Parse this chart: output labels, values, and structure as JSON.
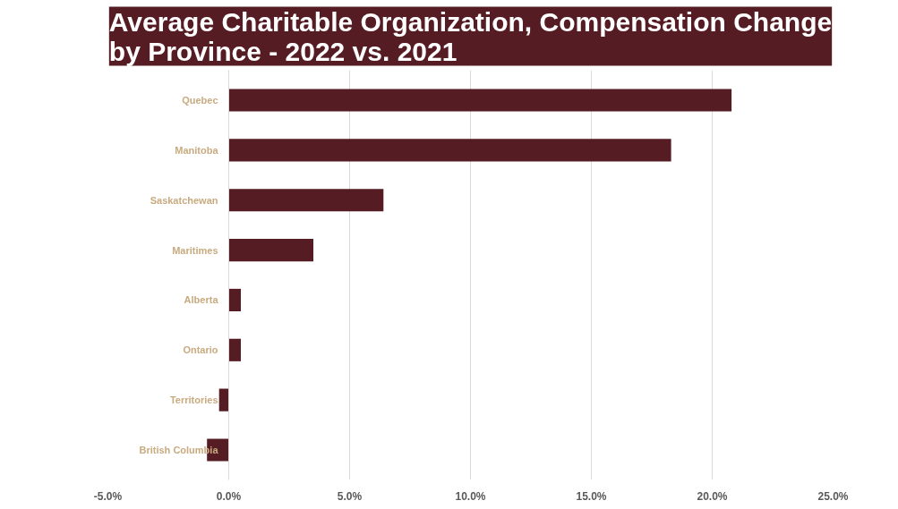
{
  "chart_data": {
    "type": "bar",
    "orientation": "horizontal",
    "title": "Average Charitable Organization, Compensation Change\nby Province - 2022 vs. 2021",
    "categories": [
      "Quebec",
      "Manitoba",
      "Saskatchewan",
      "Maritimes",
      "Alberta",
      "Ontario",
      "Territories",
      "British Columbia"
    ],
    "values": [
      20.8,
      18.3,
      6.4,
      3.5,
      0.5,
      0.5,
      -0.4,
      -0.9
    ],
    "color": "#561c24",
    "xlim": [
      -5,
      25
    ],
    "xticks": [
      {
        "value": -5,
        "label": "-5.0%"
      },
      {
        "value": 0,
        "label": "0.0%"
      },
      {
        "value": 5,
        "label": "5.0%"
      },
      {
        "value": 10,
        "label": "10.0%"
      },
      {
        "value": 15,
        "label": "15.0%"
      },
      {
        "value": 20,
        "label": "20.0%"
      },
      {
        "value": 25,
        "label": "25.0%"
      }
    ],
    "grid": "x"
  }
}
